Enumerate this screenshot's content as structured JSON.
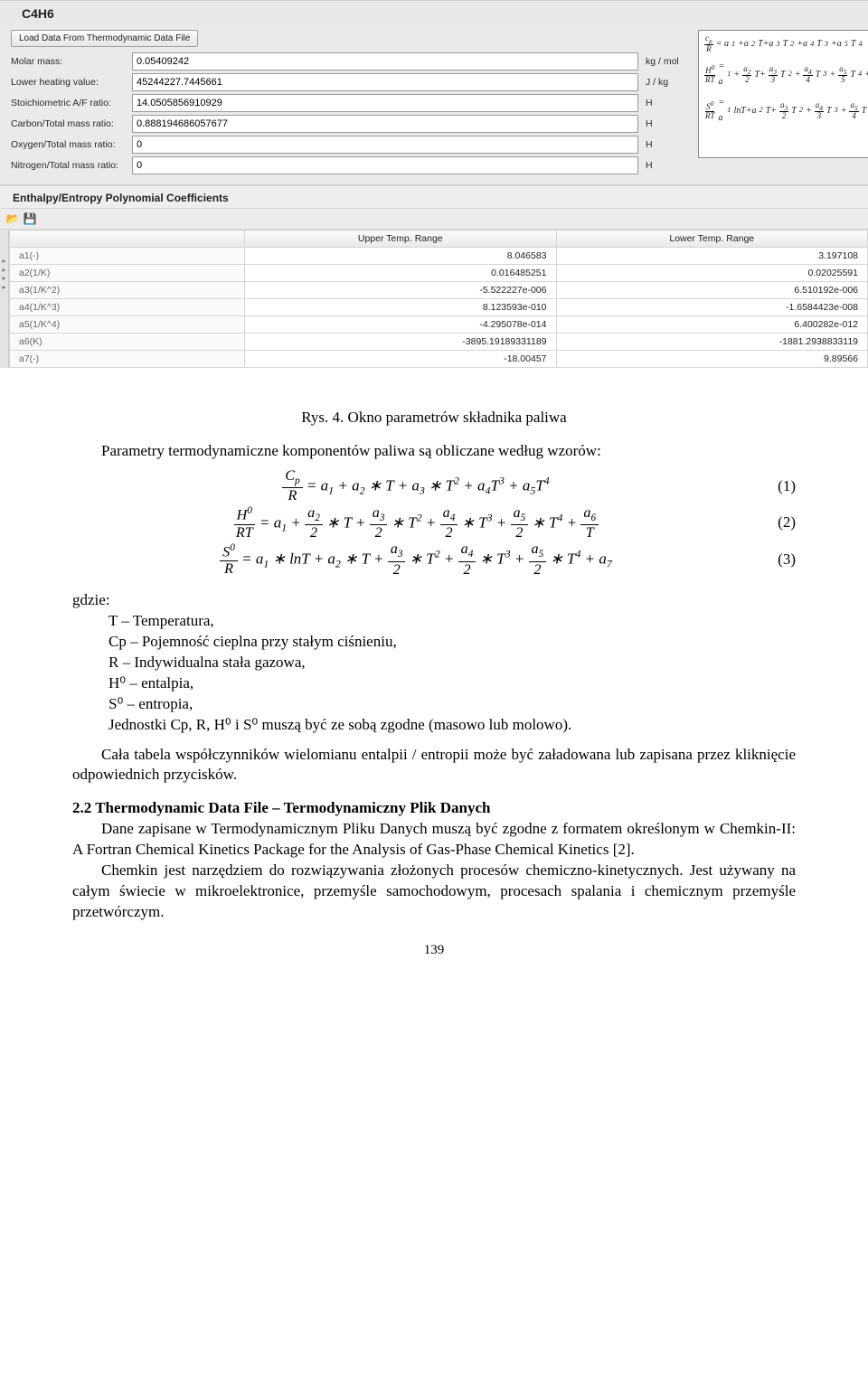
{
  "panel": {
    "title": "C4H6",
    "load_button": "Load Data From Thermodynamic Data File",
    "props": [
      {
        "label": "Molar mass:",
        "value": "0.05409242",
        "unit": "kg / mol"
      },
      {
        "label": "Lower heating value:",
        "value": "45244227.7445661",
        "unit": "J / kg"
      },
      {
        "label": "Stoichiometric A/F ratio:",
        "value": "14.0505856910929",
        "unit": "H"
      },
      {
        "label": "Carbon/Total mass ratio:",
        "value": "0.888194686057677",
        "unit": "H"
      },
      {
        "label": "Oxygen/Total mass ratio:",
        "value": "0",
        "unit": "H"
      },
      {
        "label": "Nitrogen/Total mass ratio:",
        "value": "0",
        "unit": "H"
      }
    ]
  },
  "coef_section": {
    "header": "Enthalpy/Entropy Polynomial Coefficients",
    "col_upper": "Upper Temp. Range",
    "col_lower": "Lower Temp. Range",
    "rows": [
      {
        "name": "a1(-)",
        "upper": "8.046583",
        "lower": "3.197108"
      },
      {
        "name": "a2(1/K)",
        "upper": "0.016485251",
        "lower": "0.02025591"
      },
      {
        "name": "a3(1/K^2)",
        "upper": "-5.522227e-006",
        "lower": "6.510192e-006"
      },
      {
        "name": "a4(1/K^3)",
        "upper": "8.123593e-010",
        "lower": "-1.6584423e-008"
      },
      {
        "name": "a5(1/K^4)",
        "upper": "-4.295078e-014",
        "lower": "6.400282e-012"
      },
      {
        "name": "a6(K)",
        "upper": "-3895.19189331189",
        "lower": "-1881.2938833119"
      },
      {
        "name": "a7(-)",
        "upper": "-18.00457",
        "lower": "9.89566"
      }
    ]
  },
  "doc": {
    "caption": "Rys. 4. Okno parametrów składnika paliwa",
    "intro": "Parametry termodynamiczne komponentów paliwa są obliczane według wzorów:",
    "where_label": "gdzie:",
    "where_items": [
      "T – Temperatura,",
      "Cp – Pojemność cieplna przy stałym ciśnieniu,",
      "R – Indywidualna stała gazowa,",
      "H⁰ – entalpia,",
      "S⁰ – entropia,",
      "Jednostki Cp, R, H⁰ i S⁰ muszą być ze sobą zgodne (masowo lub molowo)."
    ],
    "p1": "Cała tabela współczynników wielomianu entalpii / entropii może być załadowana lub zapisana przez kliknięcie odpowiednich przycisków.",
    "sec22_title": "2.2 Thermodynamic Data File – Termodynamiczny Plik Danych",
    "p2": "Dane zapisane w Termodynamicznym Pliku Danych muszą być zgodne z formatem określonym w Chemkin-II: A Fortran Chemical Kinetics Package for the Analysis of Gas-Phase Chemical Kinetics [2].",
    "p3": "Chemkin jest narzędziem do rozwiązywania złożonych procesów chemiczno-kinetycznych. Jest używany na całym świecie w mikroelektronice, przemyśle samochodowym, procesach spalania i chemicznym przemyśle przetwórczym.",
    "page_number": "139"
  }
}
